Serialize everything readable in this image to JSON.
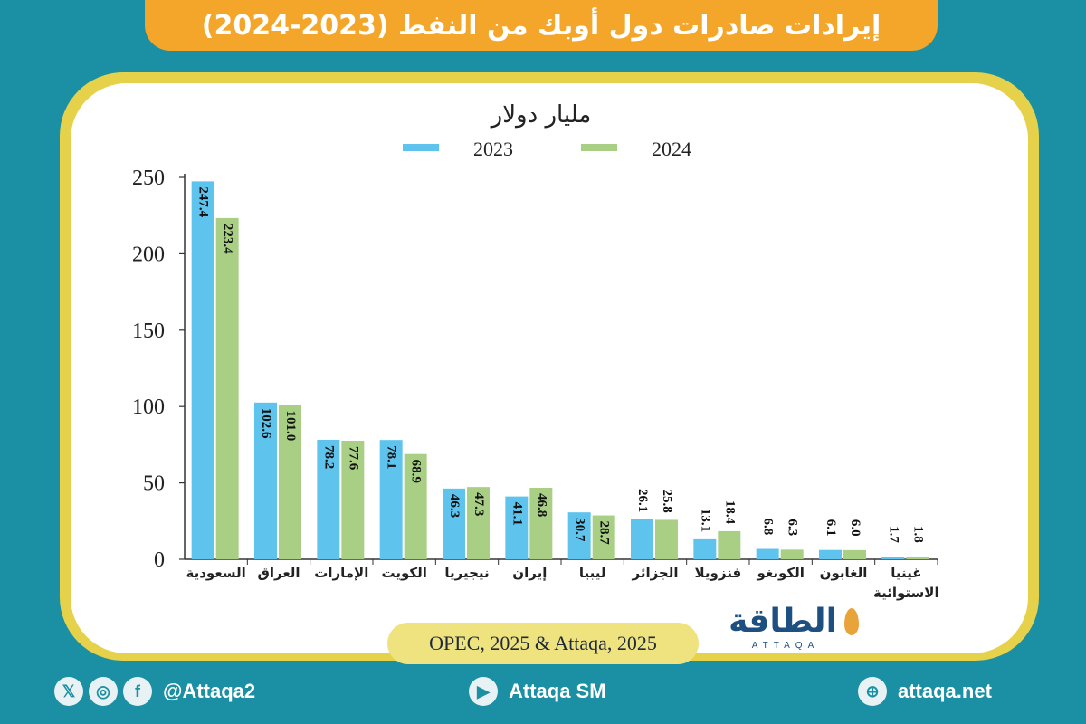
{
  "title": "إيرادات صادرات دول أوبك من النفط (2023-2024)",
  "source": "OPEC, 2025 & Attaqa, 2025",
  "logo": {
    "text": "الطاقة",
    "sub": "ATTAQA"
  },
  "footer": {
    "social_handle": "@Attaqa2",
    "youtube": "Attaqa SM",
    "website": "attaqa.net",
    "icons": [
      "x-icon",
      "instagram-icon",
      "facebook-icon",
      "youtube-icon",
      "globe-icon"
    ]
  },
  "colors": {
    "series_2023": "#5ec4ee",
    "series_2024": "#a8cf84",
    "accent": "#f4a62a",
    "background": "#1b8fa3",
    "frame": "#e6d24a"
  },
  "chart_data": {
    "type": "bar",
    "unit_label": "مليار دولار",
    "categories": [
      "السعودية",
      "العراق",
      "الإمارات",
      "الكويت",
      "نيجيريا",
      "إيران",
      "ليبيا",
      "الجزائر",
      "فنزويلا",
      "الكونغو",
      "الغابون",
      "غينيا الاستوائية"
    ],
    "series": [
      {
        "name": "2023",
        "values": [
          247.4,
          102.6,
          78.2,
          78.1,
          46.3,
          41.1,
          30.7,
          26.1,
          13.1,
          6.8,
          6.1,
          1.7
        ]
      },
      {
        "name": "2024",
        "values": [
          223.4,
          101.0,
          77.6,
          68.9,
          47.3,
          46.8,
          28.7,
          25.8,
          18.4,
          6.3,
          6.0,
          1.8
        ]
      }
    ],
    "ylim": [
      0,
      250
    ],
    "yticks": [
      0,
      50,
      100,
      150,
      200,
      250
    ],
    "legend_position": "top-center",
    "grid": false
  }
}
